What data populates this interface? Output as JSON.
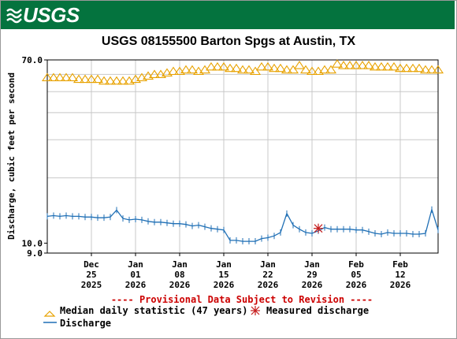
{
  "header": {
    "logo_text": "USGS",
    "logo_icon": "usgs-wave-logo"
  },
  "chart_data": {
    "type": "line",
    "title": "USGS 08155500 Barton Spgs at Austin, TX",
    "ylabel": "Discharge, cubic feet per second",
    "xlabel": "",
    "yscale": "log",
    "ylim": [
      9.0,
      70.0
    ],
    "y_tick_labels": [
      "70.0",
      "10.0",
      "9.0"
    ],
    "x_ticks": [
      {
        "line1": "Dec",
        "line2": "25",
        "line3": "2025"
      },
      {
        "line1": "Jan",
        "line2": "01",
        "line3": "2026"
      },
      {
        "line1": "Jan",
        "line2": "08",
        "line3": "2026"
      },
      {
        "line1": "Jan",
        "line2": "15",
        "line3": "2026"
      },
      {
        "line1": "Jan",
        "line2": "22",
        "line3": "2026"
      },
      {
        "line1": "Jan",
        "line2": "29",
        "line3": "2026"
      },
      {
        "line1": "Feb",
        "line2": "05",
        "line3": "2026"
      },
      {
        "line1": "Feb",
        "line2": "12",
        "line3": "2026"
      }
    ],
    "x_range": [
      "2025-12-18",
      "2026-02-18"
    ],
    "grid": true,
    "provisional_note": "---- Provisional Data Subject to Revision ----",
    "series": [
      {
        "name": "Median daily statistic (47 years)",
        "marker": "triangle",
        "color": "#e8a200",
        "x": [
          "2025-12-18",
          "2025-12-19",
          "2025-12-20",
          "2025-12-21",
          "2025-12-22",
          "2025-12-23",
          "2025-12-24",
          "2025-12-25",
          "2025-12-26",
          "2025-12-27",
          "2025-12-28",
          "2025-12-29",
          "2025-12-30",
          "2025-12-31",
          "2026-01-01",
          "2026-01-02",
          "2026-01-03",
          "2026-01-04",
          "2026-01-05",
          "2026-01-06",
          "2026-01-07",
          "2026-01-08",
          "2026-01-09",
          "2026-01-10",
          "2026-01-11",
          "2026-01-12",
          "2026-01-13",
          "2026-01-14",
          "2026-01-15",
          "2026-01-16",
          "2026-01-17",
          "2026-01-18",
          "2026-01-19",
          "2026-01-20",
          "2026-01-21",
          "2026-01-22",
          "2026-01-23",
          "2026-01-24",
          "2026-01-25",
          "2026-01-26",
          "2026-01-27",
          "2026-01-28",
          "2026-01-29",
          "2026-01-30",
          "2026-01-31",
          "2026-02-01",
          "2026-02-02",
          "2026-02-03",
          "2026-02-04",
          "2026-02-05",
          "2026-02-06",
          "2026-02-07",
          "2026-02-08",
          "2026-02-09",
          "2026-02-10",
          "2026-02-11",
          "2026-02-12",
          "2026-02-13",
          "2026-02-14",
          "2026-02-15",
          "2026-02-16",
          "2026-02-17",
          "2026-02-18"
        ],
        "values": [
          58,
          58,
          58,
          58,
          58,
          57,
          57,
          57,
          57,
          56,
          56,
          56,
          56,
          56,
          57,
          58,
          59,
          60,
          60,
          61,
          62,
          62,
          63,
          63,
          62,
          63,
          65,
          65,
          65,
          64,
          64,
          63,
          63,
          62,
          65,
          65,
          64,
          64,
          63,
          63,
          66,
          63,
          62,
          62,
          63,
          63,
          67,
          66,
          66,
          66,
          66,
          66,
          65,
          65,
          65,
          65,
          64,
          64,
          64,
          64,
          63,
          63,
          63
        ]
      },
      {
        "name": "Discharge",
        "marker": "line",
        "color": "#1f6fb5",
        "x": [
          "2025-12-18",
          "2025-12-19",
          "2025-12-20",
          "2025-12-21",
          "2025-12-22",
          "2025-12-23",
          "2025-12-24",
          "2025-12-25",
          "2025-12-26",
          "2025-12-27",
          "2025-12-28",
          "2025-12-29",
          "2025-12-30",
          "2025-12-31",
          "2026-01-01",
          "2026-01-02",
          "2026-01-03",
          "2026-01-04",
          "2026-01-05",
          "2026-01-06",
          "2026-01-07",
          "2026-01-08",
          "2026-01-09",
          "2026-01-10",
          "2026-01-11",
          "2026-01-12",
          "2026-01-13",
          "2026-01-14",
          "2026-01-15",
          "2026-01-16",
          "2026-01-17",
          "2026-01-18",
          "2026-01-19",
          "2026-01-20",
          "2026-01-21",
          "2026-01-22",
          "2026-01-23",
          "2026-01-24",
          "2026-01-25",
          "2026-01-26",
          "2026-01-27",
          "2026-01-28",
          "2026-01-29",
          "2026-01-30",
          "2026-01-31",
          "2026-02-01",
          "2026-02-02",
          "2026-02-03",
          "2026-02-04",
          "2026-02-05",
          "2026-02-06",
          "2026-02-07",
          "2026-02-08",
          "2026-02-09",
          "2026-02-10",
          "2026-02-11",
          "2026-02-12",
          "2026-02-13",
          "2026-02-14",
          "2026-02-15",
          "2026-02-16",
          "2026-02-17",
          "2026-02-18"
        ],
        "values": [
          13.3,
          13.4,
          13.3,
          13.4,
          13.3,
          13.3,
          13.2,
          13.2,
          13.1,
          13.1,
          13.2,
          14.2,
          13.0,
          12.8,
          12.9,
          12.8,
          12.6,
          12.5,
          12.5,
          12.4,
          12.3,
          12.3,
          12.2,
          12.0,
          12.1,
          11.9,
          11.7,
          11.6,
          11.5,
          10.3,
          10.3,
          10.2,
          10.2,
          10.2,
          10.5,
          10.6,
          10.8,
          11.2,
          13.7,
          12.1,
          11.6,
          11.2,
          11.1,
          11.4,
          11.8,
          11.6,
          11.6,
          11.6,
          11.6,
          11.5,
          11.5,
          11.3,
          11.1,
          11.0,
          11.2,
          11.1,
          11.1,
          11.1,
          11.0,
          11.0,
          11.1,
          14.3,
          11.5
        ]
      },
      {
        "name": "Measured discharge",
        "marker": "asterisk",
        "color": "#c41b1b",
        "x": [
          "2026-01-30"
        ],
        "values": [
          11.7
        ]
      }
    ],
    "legend_placement": "bottom"
  },
  "legend": {
    "median": "Median daily statistic (47 years)",
    "measured": "Measured discharge",
    "discharge": "Discharge"
  }
}
